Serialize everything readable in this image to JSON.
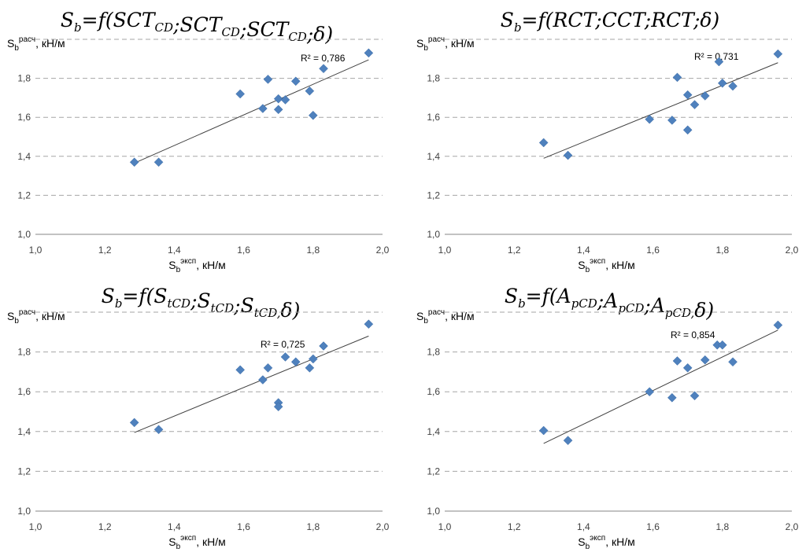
{
  "chart_data": [
    {
      "type": "scatter",
      "title": {
        "base": "S",
        "base_sub": "b",
        "mid": "=f(",
        "args": [
          {
            "t": "SCT",
            "s": "CD"
          },
          {
            "t": "SCT",
            "s": "CD"
          },
          {
            "t": "SCT",
            "s": "CD"
          }
        ],
        "sep": ";",
        "last": "δ)"
      },
      "xlabel": {
        "main": "S",
        "sub": "b",
        "sup": "эксп",
        "unit": ", кН/м"
      },
      "ylabel": {
        "main": "S",
        "sub": "b",
        "sup": "расч",
        "unit": ", кН/м"
      },
      "xlim": [
        1.0,
        2.0
      ],
      "ylim": [
        1.0,
        2.0
      ],
      "xticks": [
        "1,0",
        "1,2",
        "1,4",
        "1,6",
        "1,8",
        "2,0"
      ],
      "yticks": [
        "1,0",
        "1,2",
        "1,4",
        "1,6",
        "1,8"
      ],
      "r2_label": "R² = 0,786",
      "trendline": {
        "x": [
          1.285,
          1.96
        ],
        "y": [
          1.365,
          1.895
        ]
      },
      "x": [
        1.285,
        1.355,
        1.59,
        1.655,
        1.67,
        1.7,
        1.7,
        1.72,
        1.75,
        1.79,
        1.8,
        1.83,
        1.96
      ],
      "y": [
        1.37,
        1.37,
        1.72,
        1.645,
        1.795,
        1.64,
        1.695,
        1.69,
        1.785,
        1.735,
        1.61,
        1.85,
        1.93
      ]
    },
    {
      "type": "scatter",
      "title": {
        "base": "S",
        "base_sub": "b",
        "mid": "=f(",
        "args": [
          {
            "t": "RCT",
            "s": ""
          },
          {
            "t": "CCT",
            "s": ""
          },
          {
            "t": "RCT",
            "s": ""
          }
        ],
        "sep": ";",
        "last": "δ)"
      },
      "xlabel": {
        "main": "S",
        "sub": "b",
        "sup": "эксп",
        "unit": ", кН/м"
      },
      "ylabel": {
        "main": "S",
        "sub": "b",
        "sup": "расч",
        "unit": ", кН/м"
      },
      "xlim": [
        1.0,
        2.0
      ],
      "ylim": [
        1.0,
        2.0
      ],
      "xticks": [
        "1,0",
        "1,2",
        "1,4",
        "1,6",
        "1,8",
        "2,0"
      ],
      "yticks": [
        "1,0",
        "1,2",
        "1,4",
        "1,6",
        "1,8"
      ],
      "r2_label": "R² = 0,731",
      "trendline": {
        "x": [
          1.285,
          1.96
        ],
        "y": [
          1.39,
          1.88
        ]
      },
      "x": [
        1.285,
        1.355,
        1.59,
        1.655,
        1.67,
        1.7,
        1.7,
        1.72,
        1.75,
        1.79,
        1.8,
        1.83,
        1.96
      ],
      "y": [
        1.47,
        1.405,
        1.59,
        1.585,
        1.805,
        1.535,
        1.715,
        1.665,
        1.71,
        1.885,
        1.775,
        1.76,
        1.925
      ]
    },
    {
      "type": "scatter",
      "title": {
        "base": "S",
        "base_sub": "b",
        "mid": "=f(",
        "args": [
          {
            "t": "S",
            "s": "tCD"
          },
          {
            "t": "S",
            "s": "tCD"
          },
          {
            "t": "S",
            "s": "tCD,"
          }
        ],
        "sep": ";",
        "last": "δ)"
      },
      "xlabel": {
        "main": "S",
        "sub": "b",
        "sup": "эксп",
        "unit": ", кН/м"
      },
      "ylabel": {
        "main": "S",
        "sub": "b",
        "sup": "расч",
        "unit": ", кН/м"
      },
      "xlim": [
        1.0,
        2.0
      ],
      "ylim": [
        1.0,
        2.0
      ],
      "xticks": [
        "1,0",
        "1,2",
        "1,4",
        "1,6",
        "1,8",
        "2,0"
      ],
      "yticks": [
        "1,0",
        "1,2",
        "1,4",
        "1,6",
        "1,8"
      ],
      "r2_label": "R² = 0,725",
      "trendline": {
        "x": [
          1.285,
          1.96
        ],
        "y": [
          1.395,
          1.88
        ]
      },
      "x": [
        1.285,
        1.355,
        1.59,
        1.655,
        1.67,
        1.7,
        1.7,
        1.72,
        1.75,
        1.79,
        1.8,
        1.83,
        1.96
      ],
      "y": [
        1.445,
        1.41,
        1.71,
        1.66,
        1.72,
        1.545,
        1.525,
        1.775,
        1.75,
        1.72,
        1.765,
        1.83,
        1.94
      ]
    },
    {
      "type": "scatter",
      "title": {
        "base": "S",
        "base_sub": "b",
        "mid": "=f(",
        "args": [
          {
            "t": "A",
            "s": "pCD"
          },
          {
            "t": "A",
            "s": "pCD"
          },
          {
            "t": "A",
            "s": "pCD,"
          }
        ],
        "sep": ";",
        "last": "δ)"
      },
      "xlabel": {
        "main": "S",
        "sub": "b",
        "sup": "эксп",
        "unit": ", кН/м"
      },
      "ylabel": {
        "main": "S",
        "sub": "b",
        "sup": "расч",
        "unit": ", кН/м"
      },
      "xlim": [
        1.0,
        2.0
      ],
      "ylim": [
        1.0,
        2.0
      ],
      "xticks": [
        "1,0",
        "1,2",
        "1,4",
        "1,6",
        "1,8",
        "2,0"
      ],
      "yticks": [
        "1,0",
        "1,2",
        "1,4",
        "1,6",
        "1,8"
      ],
      "r2_label": "R² = 0,854",
      "trendline": {
        "x": [
          1.285,
          1.96
        ],
        "y": [
          1.34,
          1.91
        ]
      },
      "x": [
        1.285,
        1.355,
        1.59,
        1.655,
        1.67,
        1.7,
        1.72,
        1.75,
        1.785,
        1.8,
        1.83,
        1.96
      ],
      "y": [
        1.405,
        1.355,
        1.6,
        1.57,
        1.755,
        1.72,
        1.58,
        1.76,
        1.835,
        1.835,
        1.75,
        1.935
      ]
    }
  ],
  "colors": {
    "marker": "#4f81bd",
    "trend": "#404040",
    "grid": "#a6a6a6",
    "axis": "#868686"
  }
}
